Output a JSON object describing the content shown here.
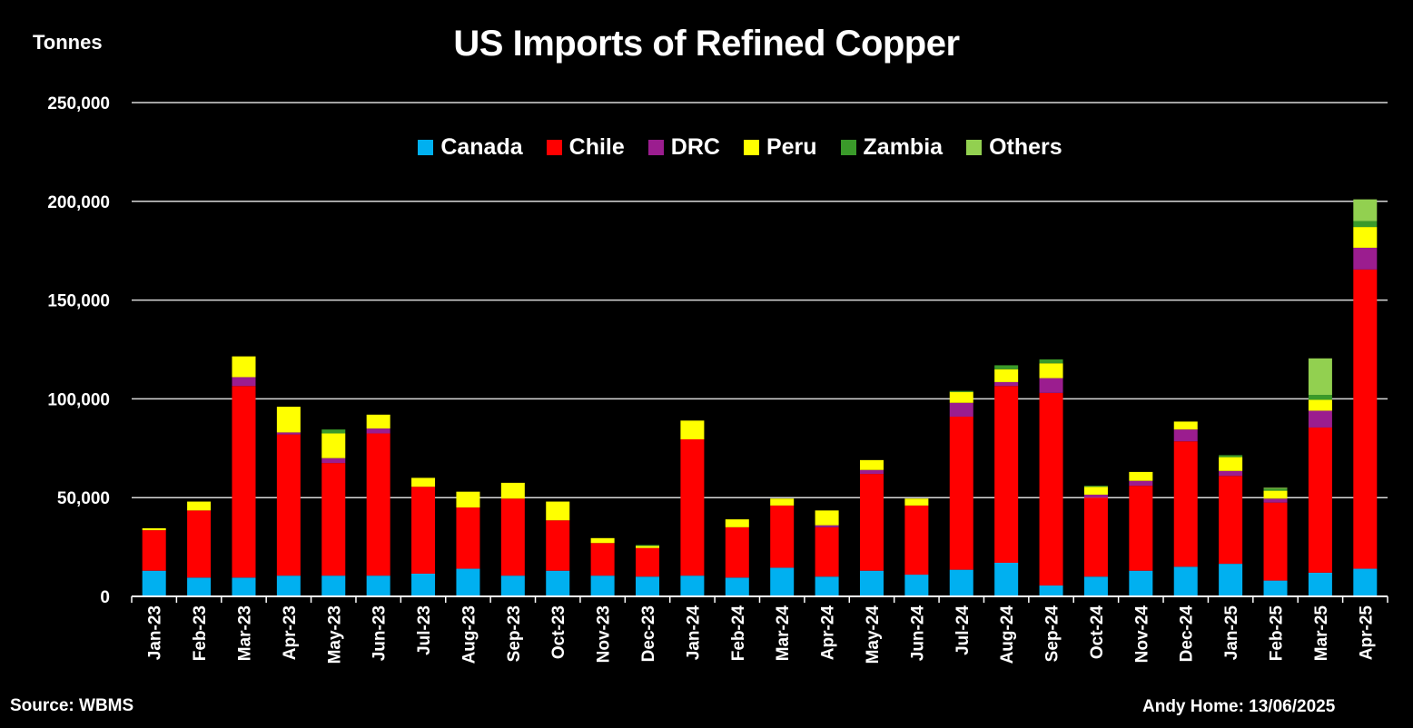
{
  "chart_data": {
    "type": "bar",
    "stacked": true,
    "title": "US Imports of Refined Copper",
    "ylabel": "Tonnes",
    "xlabel": "",
    "ylim": [
      0,
      250000
    ],
    "yticks": [
      0,
      50000,
      100000,
      150000,
      200000,
      250000
    ],
    "ytick_labels": [
      "0",
      "50,000",
      "100,000",
      "150,000",
      "200,000",
      "250,000"
    ],
    "grid": true,
    "legend_position": "top-center",
    "categories": [
      "Jan-23",
      "Feb-23",
      "Mar-23",
      "Apr-23",
      "May-23",
      "Jun-23",
      "Jul-23",
      "Aug-23",
      "Sep-23",
      "Oct-23",
      "Nov-23",
      "Dec-23",
      "Jan-24",
      "Feb-24",
      "Mar-24",
      "Apr-24",
      "May-24",
      "Jun-24",
      "Jul-24",
      "Aug-24",
      "Sep-24",
      "Oct-24",
      "Nov-24",
      "Dec-24",
      "Jan-25",
      "Feb-25",
      "Mar-25",
      "Apr-25"
    ],
    "series": [
      {
        "name": "Canada",
        "color": "#00B0F0",
        "values": [
          13000,
          9500,
          9500,
          10500,
          10500,
          10500,
          11500,
          14000,
          10500,
          13000,
          10500,
          10000,
          10500,
          9500,
          14500,
          10000,
          13000,
          11000,
          13500,
          17000,
          5500,
          10000,
          13000,
          15000,
          16500,
          8000,
          12000,
          14000
        ]
      },
      {
        "name": "Chile",
        "color": "#FF0000",
        "values": [
          20500,
          34000,
          97000,
          71500,
          57000,
          72000,
          44000,
          31000,
          39000,
          25500,
          16500,
          14500,
          69000,
          25500,
          31500,
          25000,
          49000,
          35000,
          77500,
          89500,
          97500,
          40000,
          43000,
          63500,
          44500,
          39500,
          73500,
          151500
        ]
      },
      {
        "name": "DRC",
        "color": "#9B1D8F",
        "values": [
          0,
          0,
          4500,
          1000,
          2500,
          2500,
          0,
          0,
          0,
          0,
          0,
          0,
          0,
          0,
          0,
          1000,
          2000,
          0,
          7000,
          2000,
          7500,
          1500,
          2500,
          6000,
          2500,
          2000,
          8500,
          11000
        ]
      },
      {
        "name": "Peru",
        "color": "#FFFF00",
        "values": [
          1000,
          4500,
          10500,
          13000,
          12500,
          7000,
          4500,
          8000,
          8000,
          9500,
          2500,
          1000,
          9500,
          4000,
          3500,
          7500,
          5000,
          3500,
          5500,
          6500,
          7500,
          4000,
          4500,
          4000,
          7000,
          4000,
          5500,
          10500
        ]
      },
      {
        "name": "Zambia",
        "color": "#3A9A2A",
        "values": [
          0,
          0,
          0,
          0,
          2000,
          0,
          0,
          0,
          0,
          0,
          0,
          500,
          0,
          0,
          0,
          0,
          0,
          0,
          500,
          2000,
          2000,
          500,
          0,
          0,
          1000,
          1000,
          2500,
          3000
        ]
      },
      {
        "name": "Others",
        "color": "#92D050",
        "values": [
          0,
          0,
          0,
          0,
          0,
          0,
          0,
          0,
          0,
          0,
          0,
          0,
          0,
          0,
          0,
          0,
          0,
          0,
          0,
          0,
          0,
          0,
          0,
          0,
          0,
          500,
          18500,
          11000
        ]
      }
    ]
  },
  "source": "Source: WBMS",
  "credit": "Andy Home: 13/06/2025"
}
